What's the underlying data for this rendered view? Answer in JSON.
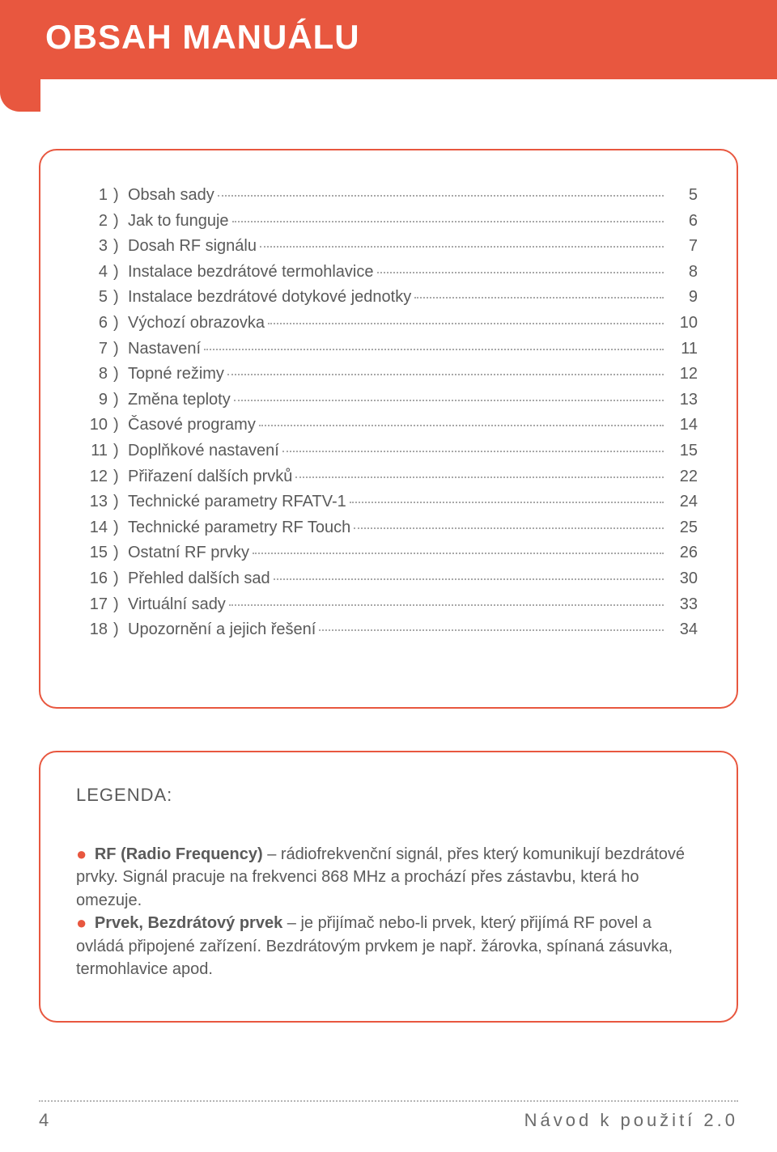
{
  "colors": {
    "accent": "#e8573f",
    "page_bg": "#ffffff",
    "text": "#5a5a5a",
    "leader": "#a8a8a8",
    "footer_rule": "#b5b5b5"
  },
  "typography": {
    "header_title_fontsize_pt": 32,
    "body_fontsize_pt": 15,
    "legend_title_fontsize_pt": 16,
    "footer_fontsize_pt": 16
  },
  "header": {
    "title": "OBSAH MANUÁLU"
  },
  "toc": {
    "items": [
      {
        "num": "1",
        "label": "Obsah sady",
        "page": "5"
      },
      {
        "num": "2",
        "label": "Jak to funguje",
        "page": "6"
      },
      {
        "num": "3",
        "label": "Dosah RF signálu",
        "page": "7"
      },
      {
        "num": "4",
        "label": "Instalace bezdrátové termohlavice",
        "page": "8"
      },
      {
        "num": "5",
        "label": "Instalace bezdrátové dotykové jednotky",
        "page": "9"
      },
      {
        "num": "6",
        "label": "Výchozí obrazovka",
        "page": "10"
      },
      {
        "num": "7",
        "label": "Nastavení",
        "page": "11"
      },
      {
        "num": "8",
        "label": "Topné režimy",
        "page": "12"
      },
      {
        "num": "9",
        "label": "Změna teploty",
        "page": "13"
      },
      {
        "num": "10",
        "label": "Časové programy",
        "page": "14"
      },
      {
        "num": "11",
        "label": "Doplňkové nastavení",
        "page": "15"
      },
      {
        "num": "12",
        "label": "Přiřazení dalších prvků",
        "page": "22"
      },
      {
        "num": "13",
        "label": "Technické parametry RFATV-1",
        "page": "24"
      },
      {
        "num": "14",
        "label": "Technické parametry RF Touch",
        "page": "25"
      },
      {
        "num": "15",
        "label": "Ostatní RF prvky",
        "page": "26"
      },
      {
        "num": "16",
        "label": "Přehled dalších sad",
        "page": "30"
      },
      {
        "num": "17",
        "label": "Virtuální sady",
        "page": "33"
      },
      {
        "num": "18",
        "label": "Upozornění a jejich řešení",
        "page": "34"
      }
    ]
  },
  "legend": {
    "title": "LEGENDA:",
    "items": [
      {
        "term": "RF (Radio Frequency)",
        "desc": " – rádiofrekvenční signál, přes který komunikují bezdrátové prvky. Signál pracuje na frekvenci 868 MHz a prochází přes zástavbu, která ho omezuje."
      },
      {
        "term": "Prvek, Bezdrátový prvek",
        "desc": " – je přijímač nebo-li prvek, který přijímá RF povel a ovládá připojené zařízení. Bezdrátovým prvkem je např. žárovka, spínaná zásuvka, termohlavice apod."
      }
    ]
  },
  "footer": {
    "page_number": "4",
    "right_text": "Návod k použití 2.0"
  }
}
